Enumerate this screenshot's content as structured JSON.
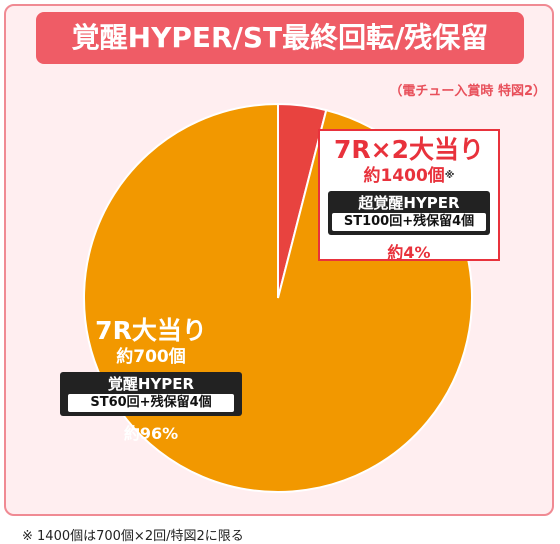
{
  "title": "覚醒HYPER/ST最終回転/残保留",
  "note": "（電チュー入賞時 特図2）",
  "footnote": "※ 1400個は700個×2回/特図2に限る",
  "colors": {
    "small": "#e8433f",
    "large": "#f29800",
    "frame": "#f08a93"
  },
  "chart_data": {
    "type": "pie",
    "categories": [
      "7R×2大当り",
      "7R大当り"
    ],
    "values": [
      4,
      96
    ],
    "slices": [
      {
        "name": "7R×2大当り",
        "payout": "約1400個",
        "mark": "※",
        "mode": "超覚醒HYPER",
        "detail": "ST100回+残保留4個",
        "percent": "約4%",
        "value": 4
      },
      {
        "name": "7R大当り",
        "payout": "約700個",
        "mode": "覚醒HYPER",
        "detail": "ST60回+残保留4個",
        "percent": "約96%",
        "value": 96
      }
    ]
  }
}
